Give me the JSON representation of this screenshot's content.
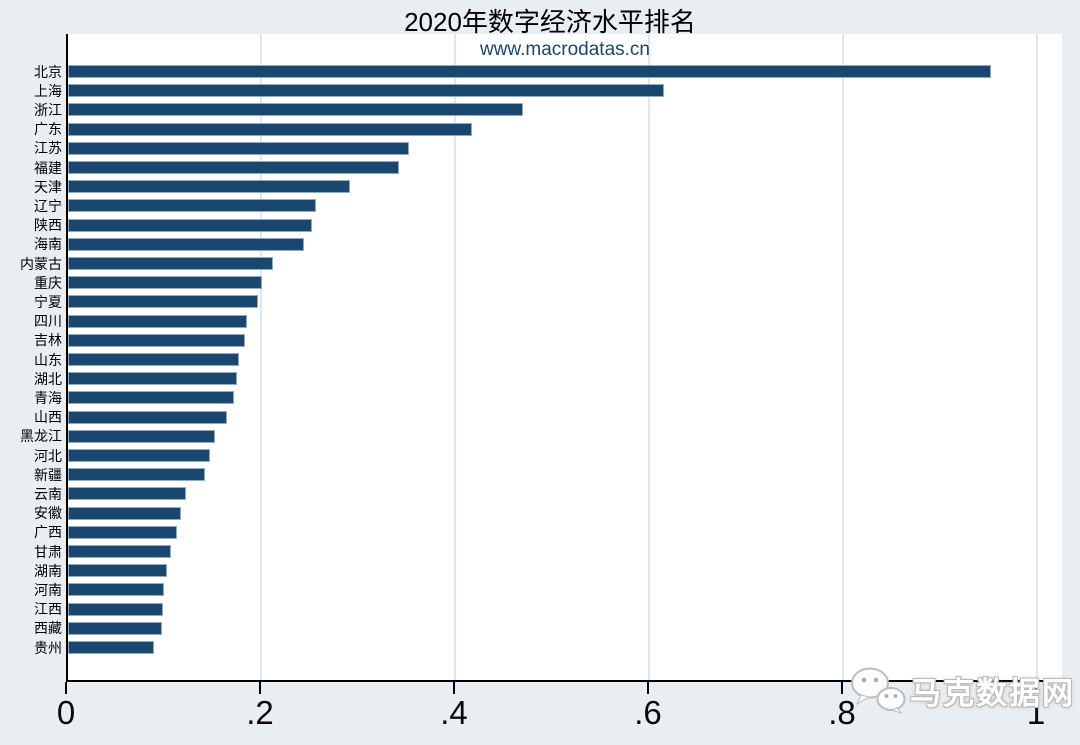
{
  "title": "2020年数字经济水平排名",
  "watermark_site": "www.macrodatas.cn",
  "brand_watermark": "马克数据网",
  "colors": {
    "background": "#e8eef2",
    "plot_background": "#ffffff",
    "bar": "#1a476f",
    "bar_border": "#93aabf",
    "gridline": "#dce9f3",
    "axis": "#000000",
    "site_watermark_text": "#1a476f",
    "brand_watermark_text": "#ffffff"
  },
  "chart_data": {
    "type": "bar",
    "orientation": "horizontal",
    "title": "2020年数字经济水平排名",
    "xlabel": "",
    "ylabel": "",
    "xlim": [
      0,
      1
    ],
    "grid": true,
    "legend": "none",
    "x_ticks": [
      {
        "label": "0",
        "value": 0
      },
      {
        "label": ".2",
        "value": 0.2
      },
      {
        "label": ".4",
        "value": 0.4
      },
      {
        "label": ".6",
        "value": 0.6
      },
      {
        "label": ".8",
        "value": 0.8
      },
      {
        "label": "1",
        "value": 1
      }
    ],
    "gridlines_at": [
      0.2,
      0.4,
      0.6,
      0.8,
      1.0
    ],
    "categories": [
      "北京",
      "上海",
      "浙江",
      "广东",
      "江苏",
      "福建",
      "天津",
      "辽宁",
      "陕西",
      "海南",
      "内蒙古",
      "重庆",
      "宁夏",
      "四川",
      "吉林",
      "山东",
      "湖北",
      "青海",
      "山西",
      "黑龙江",
      "河北",
      "新疆",
      "云南",
      "安徽",
      "广西",
      "甘肃",
      "湖南",
      "河南",
      "江西",
      "西藏",
      "贵州"
    ],
    "values": [
      0.954,
      0.617,
      0.471,
      0.419,
      0.354,
      0.343,
      0.293,
      0.258,
      0.254,
      0.245,
      0.213,
      0.202,
      0.198,
      0.187,
      0.185,
      0.178,
      0.176,
      0.173,
      0.166,
      0.154,
      0.148,
      0.143,
      0.124,
      0.119,
      0.114,
      0.108,
      0.104,
      0.101,
      0.1,
      0.099,
      0.091
    ]
  }
}
